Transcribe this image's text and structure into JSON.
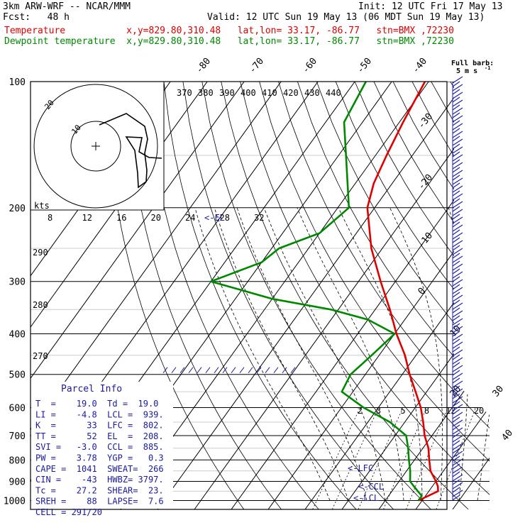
{
  "header": {
    "model": "3km ARW-WRF -- NCAR/MMM",
    "init": "Init: 12 UTC Fri 17 May 13",
    "fcst": "Fcst:   48 h",
    "valid": "Valid: 12 UTC Sun 19 May 13 (06 MDT Sun 19 May 13)",
    "temp_line": "Temperature           x,y=829.80,310.48   lat,lon= 33.17, -86.77   stn=BMX ,72230",
    "dew_line": "Dewpoint temperature  x,y=829.80,310.48   lat,lon= 33.17, -86.77   stn=BMX ,72230",
    "colors": {
      "temp": "#e00000",
      "dew": "#008800",
      "wind": "#2020b0",
      "info": "#1a1aa0"
    }
  },
  "barb_title": "Full barb:",
  "barb_sub": "5 m s",
  "barb_sup": "-1",
  "hodograph": {
    "ring_labels": [
      "10",
      "20"
    ],
    "isotach_labels": [
      "370",
      "380",
      "390",
      "400",
      "410",
      "420",
      "430",
      "440"
    ]
  },
  "kts_label": "kts",
  "kts_ticks": [
    "8",
    "12",
    "16",
    "20",
    "24",
    "28",
    "32"
  ],
  "el_marker": "<-EL",
  "theta_labels": [
    "290",
    "280",
    "270"
  ],
  "mixing_ratio_labels": [
    "2",
    "3",
    "5",
    "8",
    "12",
    "20"
  ],
  "markers": {
    "lfc": "<-LFC",
    "ccl": "<-CCL",
    "lcl": "<-LCL"
  },
  "parcel": {
    "title": "Parcel Info",
    "rows": [
      "T  =    19.0  Td =  19.0",
      "LI =    -4.8  LCL =  939.",
      "K  =      33  LFC =  802.",
      "TT =      52  EL  =  208.",
      "SVI =   -3.0  CCL =  885.",
      "PW =    3.78  YGP =   0.3",
      "CAPE =  1041  SWEAT=  266",
      "CIN =    -43  HWBZ= 3797.",
      "Tc =    27.2  SHEAR=  23.",
      "SREH =    88  LAPSE=  7.6",
      "CELL = 291/20"
    ]
  },
  "chart_data": {
    "type": "line",
    "pressure_axis_labels": [
      "100",
      "200",
      "300",
      "400",
      "500",
      "600",
      "700",
      "800",
      "900",
      "1000"
    ],
    "temperature_axis_labels": [
      "-80",
      "-70",
      "-60",
      "-50",
      "-40",
      "-30",
      "-20",
      "-10",
      "0",
      "10",
      "20",
      "30",
      "40"
    ],
    "series": [
      {
        "name": "Temperature",
        "color": "#e00000",
        "pressure": [
          1000,
          950,
          925,
          900,
          850,
          800,
          750,
          700,
          650,
          600,
          550,
          500,
          450,
          400,
          350,
          300,
          250,
          200,
          175,
          150,
          125,
          100
        ],
        "temperature": [
          19.0,
          22.5,
          21.5,
          20.0,
          16.5,
          14.0,
          11.5,
          8.0,
          5.0,
          1.5,
          -3.0,
          -8.0,
          -13.0,
          -19.5,
          -26.0,
          -34.0,
          -43.0,
          -52.0,
          -55.0,
          -57.0,
          -59.0,
          -61.0
        ]
      },
      {
        "name": "Dewpoint temperature",
        "color": "#008800",
        "pressure": [
          1000,
          975,
          950,
          925,
          900,
          850,
          800,
          750,
          700,
          650,
          600,
          550,
          500,
          450,
          400,
          370,
          350,
          330,
          300,
          270,
          250,
          230,
          200,
          150,
          125,
          100
        ],
        "temperature": [
          19.0,
          19.0,
          17.0,
          15.0,
          13.0,
          11.0,
          8.5,
          6.0,
          3.0,
          -4.0,
          -14.0,
          -23.0,
          -24.0,
          -22.0,
          -20.0,
          -30.0,
          -42.0,
          -60.0,
          -80.0,
          -70.0,
          -68.0,
          -60.0,
          -57.0,
          -68.0,
          -75.0,
          -77.0
        ]
      }
    ]
  }
}
